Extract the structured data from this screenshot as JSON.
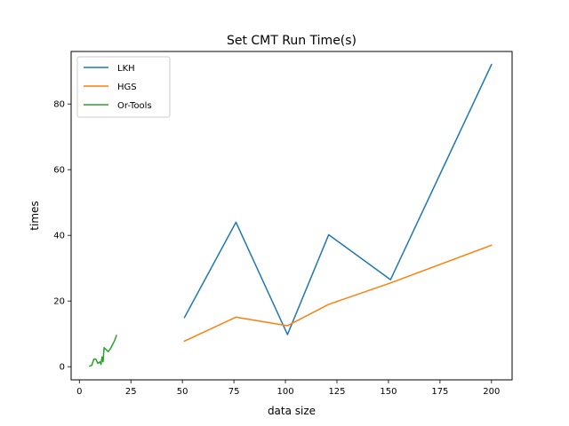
{
  "chart_data": {
    "type": "line",
    "title": "Set CMT Run Time(s)",
    "xlabel": "data size",
    "ylabel": "times",
    "xlim": [
      -4,
      210
    ],
    "ylim": [
      -4,
      96
    ],
    "xticks": [
      0,
      25,
      50,
      75,
      100,
      125,
      150,
      175,
      200
    ],
    "yticks": [
      0,
      20,
      40,
      60,
      80
    ],
    "xtick_labels": [
      "0",
      "25",
      "50",
      "75",
      "100",
      "125",
      "150",
      "175",
      "200"
    ],
    "ytick_labels": [
      "0",
      "20",
      "40",
      "60",
      "80"
    ],
    "legend_position": "top-left",
    "grid": false,
    "series": [
      {
        "name": "LKH",
        "color": "#1f77b4",
        "x": [
          51,
          76,
          101,
          121,
          151,
          200
        ],
        "y": [
          15.0,
          44.0,
          9.8,
          40.2,
          26.5,
          92.0
        ]
      },
      {
        "name": "HGS",
        "color": "#ff7f0e",
        "x": [
          51,
          76,
          101,
          121,
          151,
          200
        ],
        "y": [
          7.8,
          15.1,
          12.5,
          19.0,
          25.5,
          37.0
        ]
      },
      {
        "name": "Or-Tools",
        "color": "#2ca02c",
        "x": [
          5,
          6,
          7,
          8,
          9,
          10,
          10.5,
          11,
          11.5,
          12,
          13,
          14,
          15,
          16,
          17,
          18
        ],
        "y": [
          0.2,
          0.4,
          2.3,
          2.3,
          1.0,
          1.5,
          0.7,
          3.0,
          1.5,
          5.8,
          5.2,
          4.6,
          5.4,
          6.6,
          7.8,
          9.5
        ]
      }
    ]
  }
}
